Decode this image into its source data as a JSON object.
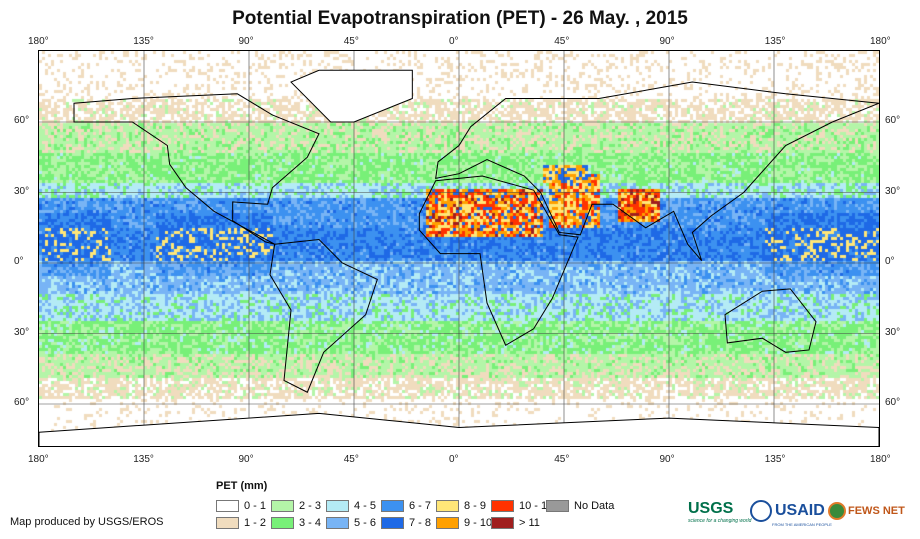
{
  "title": "Potential Evapotranspiration (PET) - 26 May. , 2015",
  "lon_labels": [
    "180°",
    "135°",
    "90°",
    "45°",
    "0°",
    "45°",
    "90°",
    "135°",
    "180°"
  ],
  "lat_labels": [
    "60°",
    "30°",
    "0°",
    "30°",
    "60°"
  ],
  "legend": {
    "title": "PET (mm)",
    "items": [
      {
        "label": "0 - 1",
        "color": "#ffffff"
      },
      {
        "label": "1 - 2",
        "color": "#f0dcbe"
      },
      {
        "label": "2 - 3",
        "color": "#b4f5a8"
      },
      {
        "label": "3 - 4",
        "color": "#78f078"
      },
      {
        "label": "4 - 5",
        "color": "#b4ebf5"
      },
      {
        "label": "5 - 6",
        "color": "#78b4f5"
      },
      {
        "label": "6 - 7",
        "color": "#3c91f0"
      },
      {
        "label": "7 - 8",
        "color": "#1e69e6"
      },
      {
        "label": "8 - 9",
        "color": "#ffe678"
      },
      {
        "label": "9 - 10",
        "color": "#ffa000"
      },
      {
        "label": "10 - 11",
        "color": "#ff3200"
      },
      {
        "label": "> 11",
        "color": "#a01e1e"
      },
      {
        "label": "No Data",
        "color": "#999999"
      }
    ]
  },
  "credit": "Map produced by USGS/EROS",
  "logos": {
    "usgs": "USGS",
    "usgs_tagline": "science for a changing world",
    "usaid": "USAID",
    "usaid_tagline": "FROM THE AMERICAN PEOPLE",
    "fews": "FEWS NET"
  }
}
